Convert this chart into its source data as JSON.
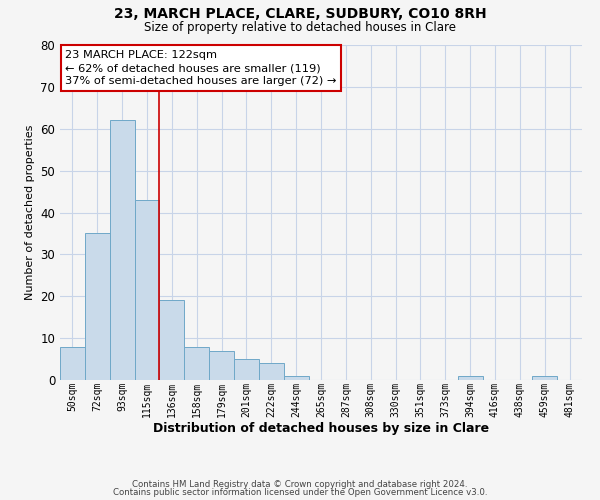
{
  "title": "23, MARCH PLACE, CLARE, SUDBURY, CO10 8RH",
  "subtitle": "Size of property relative to detached houses in Clare",
  "xlabel": "Distribution of detached houses by size in Clare",
  "ylabel": "Number of detached properties",
  "bar_labels": [
    "50sqm",
    "72sqm",
    "93sqm",
    "115sqm",
    "136sqm",
    "158sqm",
    "179sqm",
    "201sqm",
    "222sqm",
    "244sqm",
    "265sqm",
    "287sqm",
    "308sqm",
    "330sqm",
    "351sqm",
    "373sqm",
    "394sqm",
    "416sqm",
    "438sqm",
    "459sqm",
    "481sqm"
  ],
  "bar_values": [
    8,
    35,
    62,
    43,
    19,
    8,
    7,
    5,
    4,
    1,
    0,
    0,
    0,
    0,
    0,
    0,
    1,
    0,
    0,
    1,
    0
  ],
  "bar_color": "#c9daea",
  "bar_edgecolor": "#6fa8c8",
  "marker_line_index": 3,
  "marker_line_color": "#cc0000",
  "annotation_line1": "23 MARCH PLACE: 122sqm",
  "annotation_line2": "← 62% of detached houses are smaller (119)",
  "annotation_line3": "37% of semi-detached houses are larger (72) →",
  "annotation_box_edgecolor": "#cc0000",
  "ylim": [
    0,
    80
  ],
  "yticks": [
    0,
    10,
    20,
    30,
    40,
    50,
    60,
    70,
    80
  ],
  "footer_line1": "Contains HM Land Registry data © Crown copyright and database right 2024.",
  "footer_line2": "Contains public sector information licensed under the Open Government Licence v3.0.",
  "background_color": "#f5f5f5",
  "plot_background": "#f5f5f5",
  "grid_color": "#c8d4e8",
  "title_fontsize": 10,
  "subtitle_fontsize": 8.5,
  "xlabel_fontsize": 9,
  "ylabel_fontsize": 8
}
